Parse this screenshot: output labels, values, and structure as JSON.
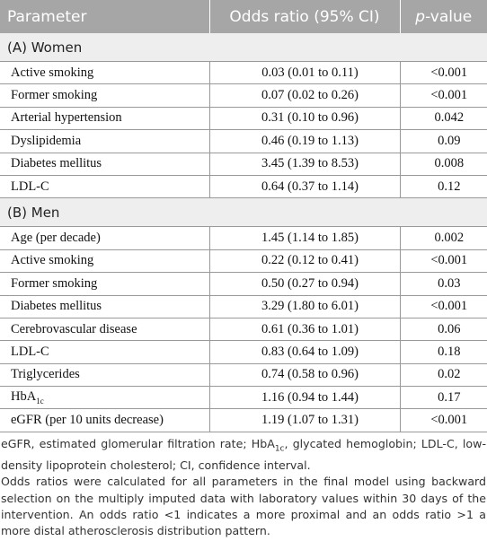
{
  "table": {
    "header": [
      "Parameter",
      "Odds ratio (95% CI)",
      [
        {
          "italic": "p"
        },
        {
          "text": "-value"
        }
      ]
    ],
    "sections": [
      {
        "title": "(A) Women",
        "rows": [
          [
            "Active smoking",
            "0.03 (0.01 to 0.11)",
            "<0.001"
          ],
          [
            "Former smoking",
            "0.07 (0.02 to 0.26)",
            "<0.001"
          ],
          [
            "Arterial hypertension",
            "0.31 (0.10 to 0.96)",
            "0.042"
          ],
          [
            "Dyslipidemia",
            "0.46 (0.19 to 1.13)",
            "0.09"
          ],
          [
            "Diabetes mellitus",
            "3.45 (1.39 to 8.53)",
            "0.008"
          ],
          [
            "LDL-C",
            "0.64 (0.37 to 1.14)",
            "0.12"
          ]
        ]
      },
      {
        "title": "(B) Men",
        "rows": [
          [
            "Age (per decade)",
            "1.45 (1.14 to 1.85)",
            "0.002"
          ],
          [
            "Active smoking",
            "0.22 (0.12 to 0.41)",
            "<0.001"
          ],
          [
            "Former smoking",
            "0.50 (0.27 to 0.94)",
            "0.03"
          ],
          [
            "Diabetes mellitus",
            "3.29 (1.80 to 6.01)",
            "<0.001"
          ],
          [
            "Cerebrovascular disease",
            "0.61 (0.36 to 1.01)",
            "0.06"
          ],
          [
            "LDL-C",
            "0.83 (0.64 to 1.09)",
            "0.18"
          ],
          [
            "Triglycerides",
            "0.74 (0.58 to 0.96)",
            "0.02"
          ],
          [
            [
              {
                "text": "HbA"
              },
              {
                "sub": "1c"
              }
            ],
            "1.16 (0.94 to 1.44)",
            "0.17"
          ],
          [
            "eGFR (per 10 units decrease)",
            "1.19 (1.07 to 1.31)",
            "<0.001"
          ]
        ]
      }
    ]
  },
  "footnotes": [
    [
      {
        "text": "eGFR, estimated glomerular filtration rate; HbA"
      },
      {
        "sub": "1c"
      },
      {
        "text": ", glycated hemoglobin; LDL-C, low-density lipoprotein cholesterol; CI, confidence interval."
      }
    ],
    [
      {
        "text": "Odds ratios were calculated for all parameters in the final model using backward selection on the multiply imputed data with laboratory values within 30 days of the intervention. An odds ratio <1 indicates a more proximal and an odds ratio >1 a more distal atherosclerosis distribution pattern."
      }
    ]
  ]
}
